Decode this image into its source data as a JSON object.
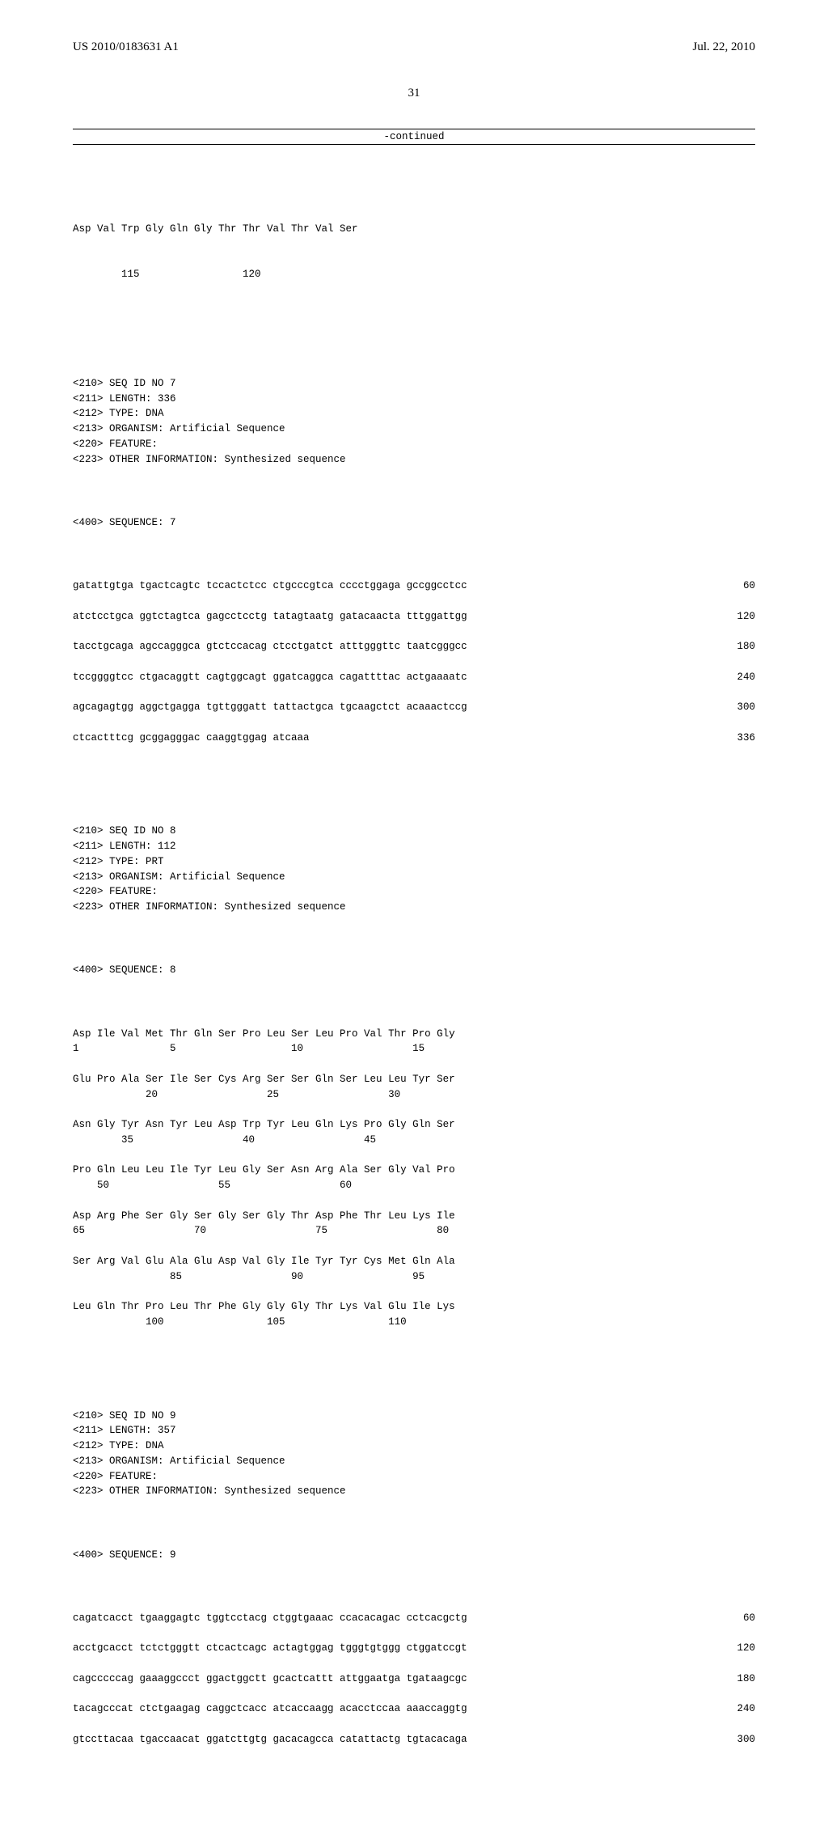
{
  "header": {
    "pub_number": "US 2010/0183631 A1",
    "pub_date": "Jul. 22, 2010"
  },
  "page_number": "31",
  "continued_label": "-continued",
  "seq6_tail": {
    "aa": "Asp Val Trp Gly Gln Gly Thr Thr Val Thr Val Ser",
    "nums": "        115                 120"
  },
  "seq7_header": [
    "<210> SEQ ID NO 7",
    "<211> LENGTH: 336",
    "<212> TYPE: DNA",
    "<213> ORGANISM: Artificial Sequence",
    "<220> FEATURE:",
    "<223> OTHER INFORMATION: Synthesized sequence"
  ],
  "seq7_label": "<400> SEQUENCE: 7",
  "seq7_lines": [
    {
      "t": "gatattgtga tgactcagtc tccactctcc ctgcccgtca cccctggaga gccggcctcc",
      "p": "60"
    },
    {
      "t": "atctcctgca ggtctagtca gagcctcctg tatagtaatg gatacaacta tttggattgg",
      "p": "120"
    },
    {
      "t": "tacctgcaga agccagggca gtctccacag ctcctgatct atttgggttc taatcgggcc",
      "p": "180"
    },
    {
      "t": "tccggggtcc ctgacaggtt cagtggcagt ggatcaggca cagattttac actgaaaatc",
      "p": "240"
    },
    {
      "t": "agcagagtgg aggctgagga tgttgggatt tattactgca tgcaagctct acaaactccg",
      "p": "300"
    },
    {
      "t": "ctcactttcg gcggagggac caaggtggag atcaaa",
      "p": "336"
    }
  ],
  "seq8_header": [
    "<210> SEQ ID NO 8",
    "<211> LENGTH: 112",
    "<212> TYPE: PRT",
    "<213> ORGANISM: Artificial Sequence",
    "<220> FEATURE:",
    "<223> OTHER INFORMATION: Synthesized sequence"
  ],
  "seq8_label": "<400> SEQUENCE: 8",
  "seq8_lines": [
    {
      "aa": "Asp Ile Val Met Thr Gln Ser Pro Leu Ser Leu Pro Val Thr Pro Gly",
      "nums": "1               5                   10                  15"
    },
    {
      "aa": "Glu Pro Ala Ser Ile Ser Cys Arg Ser Ser Gln Ser Leu Leu Tyr Ser",
      "nums": "            20                  25                  30"
    },
    {
      "aa": "Asn Gly Tyr Asn Tyr Leu Asp Trp Tyr Leu Gln Lys Pro Gly Gln Ser",
      "nums": "        35                  40                  45"
    },
    {
      "aa": "Pro Gln Leu Leu Ile Tyr Leu Gly Ser Asn Arg Ala Ser Gly Val Pro",
      "nums": "    50                  55                  60"
    },
    {
      "aa": "Asp Arg Phe Ser Gly Ser Gly Ser Gly Thr Asp Phe Thr Leu Lys Ile",
      "nums": "65                  70                  75                  80"
    },
    {
      "aa": "Ser Arg Val Glu Ala Glu Asp Val Gly Ile Tyr Tyr Cys Met Gln Ala",
      "nums": "                85                  90                  95"
    },
    {
      "aa": "Leu Gln Thr Pro Leu Thr Phe Gly Gly Gly Thr Lys Val Glu Ile Lys",
      "nums": "            100                 105                 110"
    }
  ],
  "seq9_header": [
    "<210> SEQ ID NO 9",
    "<211> LENGTH: 357",
    "<212> TYPE: DNA",
    "<213> ORGANISM: Artificial Sequence",
    "<220> FEATURE:",
    "<223> OTHER INFORMATION: Synthesized sequence"
  ],
  "seq9_label": "<400> SEQUENCE: 9",
  "seq9_lines": [
    {
      "t": "cagatcacct tgaaggagtc tggtcctacg ctggtgaaac ccacacagac cctcacgctg",
      "p": "60"
    },
    {
      "t": "acctgcacct tctctgggtt ctcactcagc actagtggag tgggtgtggg ctggatccgt",
      "p": "120"
    },
    {
      "t": "cagcccccag gaaaggccct ggactggctt gcactcattt attggaatga tgataagcgc",
      "p": "180"
    },
    {
      "t": "tacagcccat ctctgaagag caggctcacc atcaccaagg acacctccaa aaaccaggtg",
      "p": "240"
    },
    {
      "t": "gtccttacaa tgaccaacat ggatcttgtg gacacagcca catattactg tgtacacaga",
      "p": "300"
    }
  ]
}
